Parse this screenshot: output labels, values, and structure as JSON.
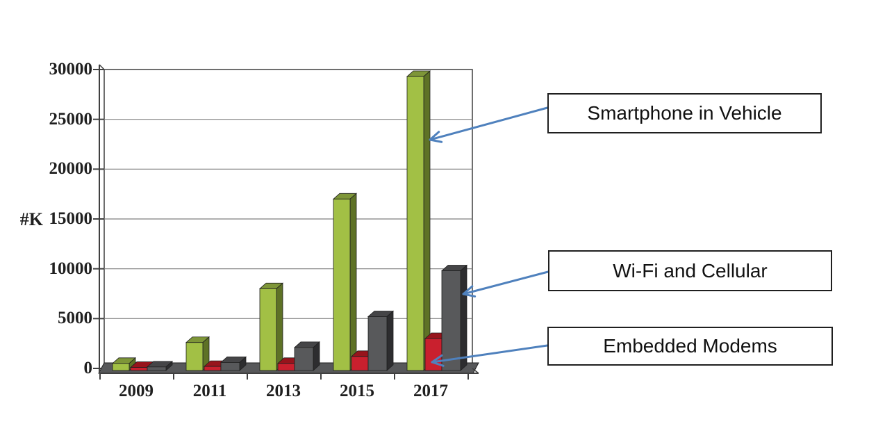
{
  "chart_data": {
    "type": "bar",
    "title": "",
    "unit_label": "#K",
    "categories": [
      "2009",
      "2011",
      "2013",
      "2015",
      "2017"
    ],
    "series": [
      {
        "name": "Smartphone in Vehicle",
        "color": "#A2C045",
        "side_color": "#5E7226",
        "top_color": "#7E9638",
        "values": [
          500,
          2600,
          8000,
          17000,
          29300
        ]
      },
      {
        "name": "Embedded Modems",
        "color": "#C9202E",
        "side_color": "#7C1118",
        "top_color": "#97141C",
        "values": [
          100,
          200,
          500,
          1200,
          3000
        ]
      },
      {
        "name": "Wi-Fi and Cellular",
        "color": "#58595B",
        "side_color": "#2D2D2F",
        "top_color": "#454547",
        "values": [
          150,
          600,
          2100,
          5200,
          9800
        ]
      }
    ],
    "yticks": [
      0,
      5000,
      10000,
      15000,
      20000,
      25000,
      30000
    ],
    "ylim": [
      0,
      30000
    ],
    "grid": true,
    "style": "3d-bars",
    "legend_position": "right-callouts"
  },
  "annotations": [
    {
      "label": "Smartphone in Vehicle"
    },
    {
      "label": "Wi-Fi and Cellular"
    },
    {
      "label": "Embedded Modems"
    }
  ],
  "colors": {
    "arrow": "#4F81BD",
    "box_border": "#1F1F1F",
    "box_bg": "#FFFFFF",
    "grid": "#7F7F7F",
    "frame": "#3F3F3F",
    "floor": "#57585A",
    "text": "#1F1F1F",
    "background": "#FFFFFF"
  }
}
